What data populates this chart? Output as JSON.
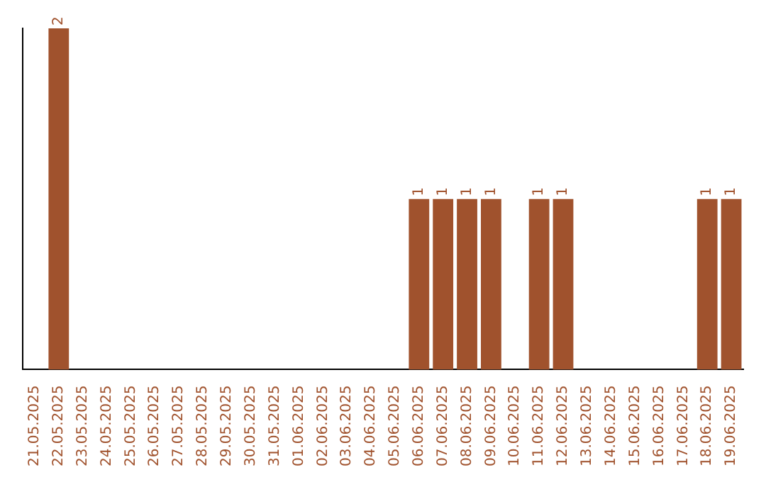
{
  "chart_data": {
    "type": "bar",
    "categories": [
      "21.05.2025",
      "22.05.2025",
      "23.05.2025",
      "24.05.2025",
      "25.05.2025",
      "26.05.2025",
      "27.05.2025",
      "28.05.2025",
      "29.05.2025",
      "30.05.2025",
      "31.05.2025",
      "01.06.2025",
      "02.06.2025",
      "03.06.2025",
      "04.06.2025",
      "05.06.2025",
      "06.06.2025",
      "07.06.2025",
      "08.06.2025",
      "09.06.2025",
      "10.06.2025",
      "11.06.2025",
      "12.06.2025",
      "13.06.2025",
      "14.06.2025",
      "15.06.2025",
      "16.06.2025",
      "17.06.2025",
      "18.06.2025",
      "19.06.2025"
    ],
    "values": [
      0,
      2,
      0,
      0,
      0,
      0,
      0,
      0,
      0,
      0,
      0,
      0,
      0,
      0,
      0,
      0,
      1,
      1,
      1,
      1,
      0,
      1,
      1,
      0,
      0,
      0,
      0,
      0,
      1,
      1
    ],
    "value_labels": [
      null,
      "2",
      null,
      null,
      null,
      null,
      null,
      null,
      null,
      null,
      null,
      null,
      null,
      null,
      null,
      null,
      "1",
      "1",
      "1",
      "1",
      null,
      "1",
      "1",
      null,
      null,
      null,
      null,
      null,
      "1",
      "1"
    ],
    "color": "#a0522d",
    "tick_labels": "x"
  }
}
